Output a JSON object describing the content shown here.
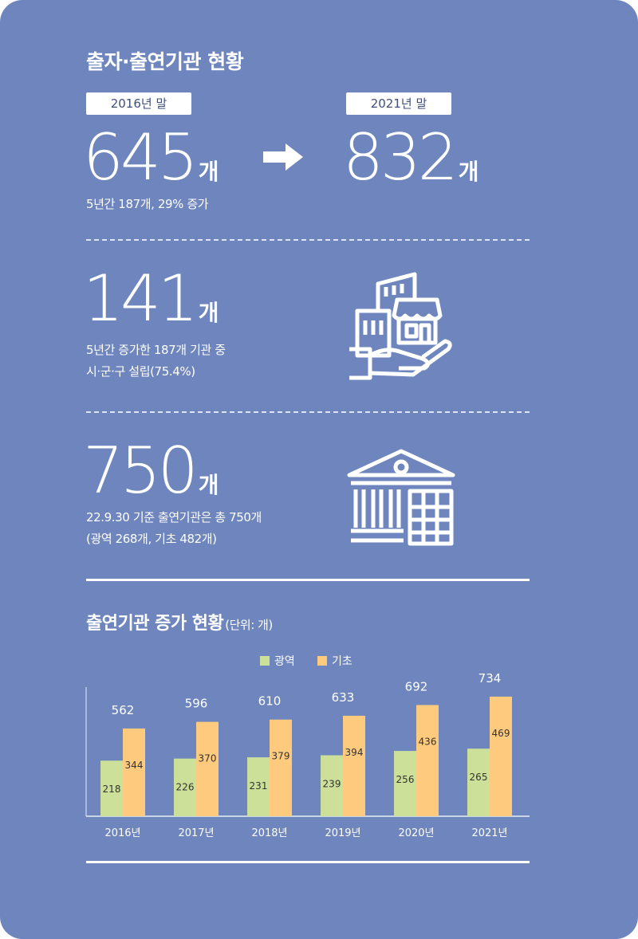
{
  "header": {
    "title": "출자·출연기관 현황"
  },
  "compare": {
    "from_label": "2016년 말",
    "from_value": "645",
    "unit": "개",
    "arrow": "arrow-right-icon",
    "to_label": "2021년 말",
    "to_value": "832",
    "note": "5년간 187개, 29% 증가"
  },
  "stat1": {
    "value": "141",
    "unit": "개",
    "line1": "5년간 증가한 187개 기관 중",
    "line2": "시·군·구 설립(75.4%)",
    "icon": "buildings-in-hand-icon"
  },
  "stat2": {
    "value": "750",
    "unit": "개",
    "line1": "22.9.30 기준 출연기관은 총 750개",
    "line2": "(광역 268개, 기초 482개)",
    "icon": "institution-building-icon"
  },
  "chart_section": {
    "title": "출연기관 증가 현황",
    "unit_note": "(단위: 개)"
  },
  "chart_data": {
    "type": "bar",
    "categories": [
      "2016년",
      "2017년",
      "2018년",
      "2019년",
      "2020년",
      "2021년"
    ],
    "series": [
      {
        "name": "광역",
        "values": [
          218,
          226,
          231,
          239,
          256,
          265
        ],
        "color": "#cce09a"
      },
      {
        "name": "기초",
        "values": [
          344,
          370,
          379,
          394,
          436,
          469
        ],
        "color": "#fecb7e"
      }
    ],
    "totals": [
      562,
      596,
      610,
      633,
      692,
      734
    ],
    "legend_position": "top-center",
    "grid": false,
    "ylim": [
      0,
      600
    ]
  }
}
